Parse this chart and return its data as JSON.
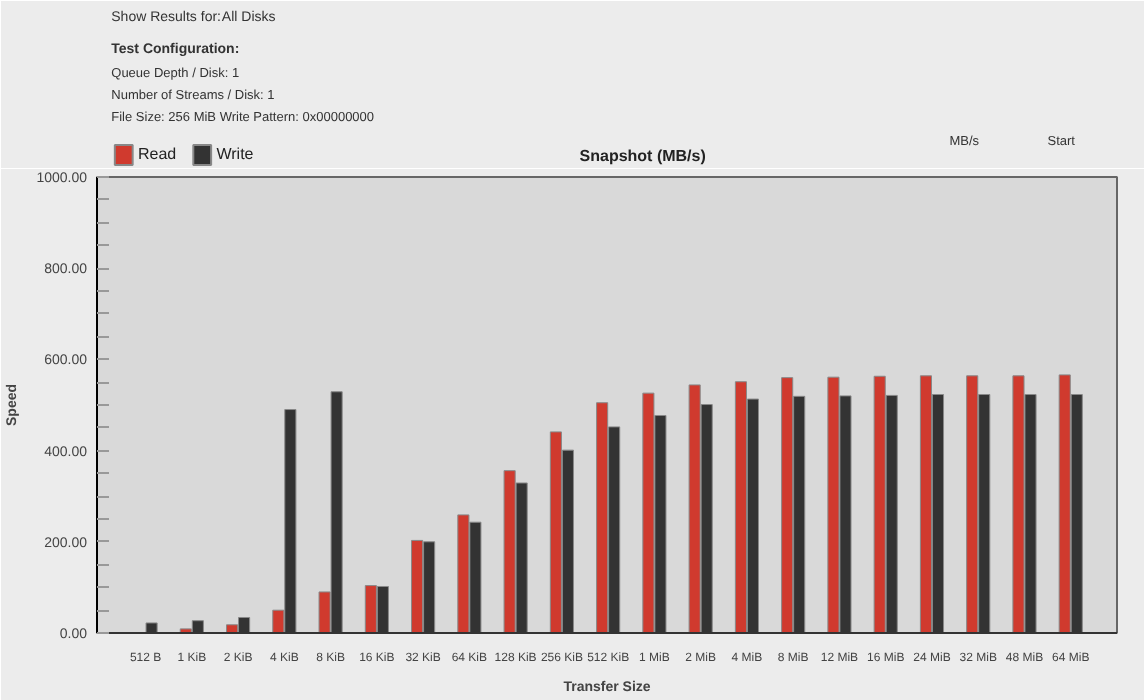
{
  "chart_data": {
    "type": "bar",
    "title": "Snapshot (MB/s)",
    "xlabel": "Transfer Size",
    "ylabel": "Speed",
    "categories": [
      "512 B",
      "1 KiB",
      "2 KiB",
      "4 KiB",
      "8 KiB",
      "16 KiB",
      "32 KiB",
      "64 KiB",
      "128 KiB",
      "256 KiB",
      "512 KiB",
      "1 MiB",
      "2 MiB",
      "4 MiB",
      "8 MiB",
      "12 MiB",
      "16 MiB",
      "24 MiB",
      "32 MiB",
      "48 MiB",
      "64 MiB"
    ],
    "series": [
      {
        "name": "Read",
        "color": "#d03a2e",
        "values": [
          1,
          9,
          18,
          50,
          90,
          104,
          203,
          259,
          356,
          441,
          505,
          526,
          544,
          551,
          560,
          561,
          563,
          564,
          564,
          564,
          566
        ]
      },
      {
        "name": "Write",
        "color": "#333333",
        "values": [
          22,
          27,
          34,
          490,
          529,
          102,
          200,
          243,
          329,
          401,
          452,
          477,
          501,
          513,
          519,
          520,
          521,
          523,
          523,
          523,
          523
        ]
      }
    ],
    "ylim": [
      0,
      1000
    ],
    "yticks": [
      {
        "value": 0,
        "label": "0.00"
      },
      {
        "value": 50,
        "label": null
      },
      {
        "value": 100,
        "label": null
      },
      {
        "value": 150,
        "label": null
      },
      {
        "value": 200,
        "label": "200.00"
      },
      {
        "value": 250,
        "label": null
      },
      {
        "value": 300,
        "label": null
      },
      {
        "value": 350,
        "label": null
      },
      {
        "value": 400,
        "label": "400.00"
      },
      {
        "value": 450,
        "label": null
      },
      {
        "value": 500,
        "label": null
      },
      {
        "value": 550,
        "label": null
      },
      {
        "value": 600,
        "label": "600.00"
      },
      {
        "value": 650,
        "label": null
      },
      {
        "value": 700,
        "label": null
      },
      {
        "value": 750,
        "label": null
      },
      {
        "value": 800,
        "label": "800.00"
      },
      {
        "value": 850,
        "label": null
      },
      {
        "value": 900,
        "label": null
      },
      {
        "value": 950,
        "label": null
      },
      {
        "value": 1000,
        "label": "1000.00"
      }
    ],
    "grid": false,
    "legend": "top left",
    "annotations": [
      "Show Results for:",
      "All Disks",
      "Test Configuration:",
      "Queue Depth / Disk: 1",
      "Number of Streams / Disk: 1",
      "File Size: 256 MiB   Write Pattern: 0x00000000",
      "MB/s",
      "Start"
    ]
  }
}
